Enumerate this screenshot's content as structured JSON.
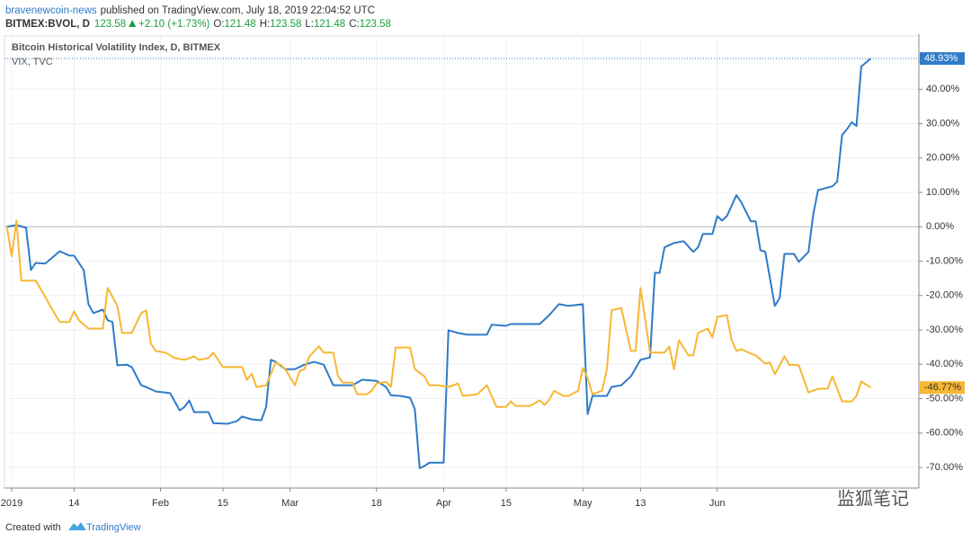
{
  "header": {
    "author": "bravenewcoin-news",
    "published": "published on TradingView.com, July 18, 2019 22:04:52 UTC",
    "symbol": "BITMEX:BVOL, D",
    "last": "123.58",
    "change": "+2.10 (+1.73%)",
    "ohlc": [
      {
        "label": "O:",
        "value": "121.48"
      },
      {
        "label": "H:",
        "value": "123.58"
      },
      {
        "label": "L:",
        "value": "121.48"
      },
      {
        "label": "C:",
        "value": "123.58"
      }
    ]
  },
  "chart_data": {
    "type": "line",
    "grid": true,
    "xlim": [
      -0.5,
      190
    ],
    "ylim": [
      -76,
      55.5
    ],
    "xticks": [
      {
        "value": 1,
        "label": "2019"
      },
      {
        "value": 14,
        "label": "14"
      },
      {
        "value": 32,
        "label": "Feb"
      },
      {
        "value": 45,
        "label": "15"
      },
      {
        "value": 59,
        "label": "Mar"
      },
      {
        "value": 77,
        "label": "18"
      },
      {
        "value": 91,
        "label": "Apr"
      },
      {
        "value": 104,
        "label": "15"
      },
      {
        "value": 120,
        "label": "May"
      },
      {
        "value": 132,
        "label": "13"
      },
      {
        "value": 148,
        "label": "Jun"
      }
    ],
    "yticks": [
      {
        "value": 40,
        "label": "40.00%"
      },
      {
        "value": 30,
        "label": "30.00%"
      },
      {
        "value": 20,
        "label": "20.00%"
      },
      {
        "value": 10,
        "label": "10.00%"
      },
      {
        "value": 0,
        "label": "0.00%"
      },
      {
        "value": -10,
        "label": "-10.00%"
      },
      {
        "value": -20,
        "label": "-20.00%"
      },
      {
        "value": -30,
        "label": "-30.00%"
      },
      {
        "value": -40,
        "label": "-40.00%"
      },
      {
        "value": -50,
        "label": "-50.00%"
      },
      {
        "value": -60,
        "label": "-60.00%"
      },
      {
        "value": -70,
        "label": "-70.00%"
      }
    ],
    "series": [
      {
        "name": "Bitcoin Historical Volatility Index, D, BITMEX",
        "color": "#2f7bc7",
        "last_label": "48.93%",
        "x": [
          0,
          2,
          4,
          5,
          6,
          8,
          11,
          13,
          14,
          16,
          17,
          18,
          20,
          21,
          22,
          23,
          25,
          26,
          28,
          29,
          31,
          34,
          36,
          37,
          38,
          39,
          42,
          43,
          46,
          48,
          49,
          51,
          53,
          54,
          55,
          56,
          58,
          60,
          62,
          64,
          66,
          68,
          72,
          74,
          77,
          79,
          80,
          82,
          84,
          85,
          86,
          87,
          88,
          91,
          92,
          94,
          96,
          100,
          101,
          104,
          105,
          111,
          113,
          115,
          117,
          120,
          121,
          122,
          125,
          126,
          128,
          130,
          132,
          134,
          135,
          136,
          137,
          139,
          141,
          143,
          144,
          145,
          147,
          148,
          149,
          150,
          152,
          153,
          155,
          156,
          157,
          158,
          160,
          161,
          162,
          164,
          165,
          167,
          168,
          169,
          170,
          172,
          173,
          174,
          175,
          176,
          177,
          178,
          180
        ],
        "values": [
          0,
          0.5,
          -0.3,
          -12.6,
          -10.5,
          -10.7,
          -7.1,
          -8.4,
          -8.4,
          -12.6,
          -22.5,
          -25.1,
          -24.1,
          -27.2,
          -27.7,
          -40.3,
          -40.1,
          -40.8,
          -46.1,
          -46.6,
          -47.9,
          -48.4,
          -53.4,
          -52.4,
          -50.5,
          -53.9,
          -53.9,
          -57.1,
          -57.3,
          -56.5,
          -55.2,
          -56.0,
          -56.3,
          -52.4,
          -38.7,
          -39.3,
          -41.4,
          -41.4,
          -40.1,
          -39.3,
          -40.1,
          -46.1,
          -46.1,
          -44.5,
          -44.8,
          -46.6,
          -49.0,
          -49.2,
          -49.7,
          -53.1,
          -70.2,
          -69.6,
          -68.6,
          -68.6,
          -30.1,
          -30.9,
          -31.4,
          -31.4,
          -28.5,
          -28.8,
          -28.3,
          -28.3,
          -25.7,
          -22.5,
          -23.0,
          -22.5,
          -54.5,
          -49.2,
          -49.2,
          -46.6,
          -46.1,
          -43.5,
          -38.7,
          -38.0,
          -13.4,
          -13.4,
          -6.0,
          -4.7,
          -4.2,
          -7.3,
          -6.0,
          -2.1,
          -2.1,
          3.1,
          1.8,
          3.1,
          9.2,
          7.1,
          1.6,
          1.6,
          -6.8,
          -7.3,
          -23.0,
          -20.7,
          -7.9,
          -7.9,
          -10.2,
          -7.3,
          3.7,
          10.7,
          11.0,
          11.8,
          13.1,
          26.7,
          28.3,
          30.4,
          29.3,
          46.6,
          48.93
        ]
      },
      {
        "name": "VIX, TVC",
        "color": "#f7b733",
        "last_label": "-46.77%",
        "x": [
          0,
          1,
          2,
          3,
          6,
          8,
          9,
          11,
          13,
          14,
          15,
          17,
          20,
          21,
          23,
          24,
          26,
          28,
          29,
          30,
          31,
          33,
          35,
          37,
          39,
          40,
          42,
          43,
          44,
          45,
          49,
          50,
          51,
          52,
          54,
          56,
          57,
          58,
          60,
          61,
          62,
          63,
          65,
          66,
          68,
          69,
          70,
          72,
          73,
          75,
          76,
          77,
          79,
          80,
          81,
          84,
          85,
          87,
          88,
          90,
          92,
          94,
          95,
          98,
          100,
          101,
          102,
          104,
          105,
          106,
          109,
          111,
          112,
          113,
          114,
          116,
          117,
          119,
          120,
          121,
          122,
          124,
          125,
          126,
          128,
          130,
          131,
          132,
          134,
          137,
          138,
          139,
          140,
          142,
          143,
          144,
          146,
          147,
          148,
          150,
          151,
          152,
          153,
          155,
          156,
          158,
          159,
          160,
          162,
          163,
          165,
          167,
          169,
          171,
          172,
          174,
          176,
          177,
          178,
          180
        ],
        "values": [
          0,
          -8.6,
          1.8,
          -15.7,
          -15.7,
          -20.4,
          -23.0,
          -27.7,
          -27.7,
          -24.6,
          -27.2,
          -29.6,
          -29.6,
          -17.8,
          -23.0,
          -30.9,
          -30.9,
          -25.1,
          -24.3,
          -34.0,
          -36.1,
          -36.6,
          -38.2,
          -38.7,
          -37.7,
          -38.7,
          -38.2,
          -36.6,
          -38.7,
          -40.8,
          -40.8,
          -44.5,
          -42.7,
          -46.6,
          -46.1,
          -39.5,
          -40.1,
          -41.4,
          -46.1,
          -41.9,
          -41.4,
          -37.7,
          -34.8,
          -36.6,
          -36.6,
          -43.5,
          -45.3,
          -45.3,
          -48.7,
          -48.7,
          -47.7,
          -45.6,
          -45.1,
          -46.6,
          -35.1,
          -35.1,
          -41.4,
          -43.5,
          -46.1,
          -46.1,
          -46.6,
          -45.6,
          -49.2,
          -48.7,
          -46.1,
          -49.2,
          -52.4,
          -52.4,
          -50.8,
          -52.1,
          -52.1,
          -50.5,
          -51.8,
          -50.3,
          -47.7,
          -49.2,
          -49.2,
          -47.7,
          -41.1,
          -44.0,
          -48.7,
          -47.7,
          -41.4,
          -24.3,
          -23.6,
          -36.1,
          -36.1,
          -17.8,
          -36.6,
          -36.6,
          -34.8,
          -41.4,
          -33.0,
          -37.4,
          -37.4,
          -30.9,
          -29.6,
          -32.2,
          -26.2,
          -25.7,
          -33.0,
          -36.1,
          -35.6,
          -36.9,
          -37.4,
          -39.8,
          -39.5,
          -42.9,
          -37.7,
          -40.1,
          -40.3,
          -48.2,
          -47.1,
          -47.1,
          -43.5,
          -50.8,
          -50.8,
          -49.2,
          -45.0,
          -46.77
        ]
      }
    ]
  },
  "watermark": "监狐笔记",
  "footer": {
    "prefix": "Created with",
    "brand": "TradingView"
  }
}
